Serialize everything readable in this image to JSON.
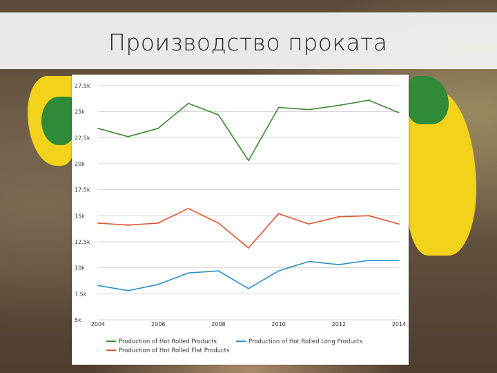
{
  "slide": {
    "title": "Производство проката"
  },
  "chart_data": {
    "type": "line",
    "x": [
      2004,
      2005,
      2006,
      2007,
      2008,
      2009,
      2010,
      2011,
      2012,
      2013,
      2014
    ],
    "x_tick_labels": [
      "2004",
      "2006",
      "2008",
      "2010",
      "2012",
      "2014"
    ],
    "x_tick_values": [
      2004,
      2006,
      2008,
      2010,
      2012,
      2014
    ],
    "y_tick_labels": [
      "5k",
      "7.5k",
      "10k",
      "12.5k",
      "15k",
      "17.5k",
      "20k",
      "22.5k",
      "25k",
      "27.5k"
    ],
    "y_tick_values": [
      5000,
      7500,
      10000,
      12500,
      15000,
      17500,
      20000,
      22500,
      25000,
      27500
    ],
    "ylim": [
      5000,
      27500
    ],
    "grid": true,
    "legend_position": "bottom",
    "series": [
      {
        "name": "Production of Hot Rolled Products",
        "color": "#3a8a2e",
        "values": [
          23400,
          22600,
          23400,
          25800,
          24700,
          20300,
          25400,
          25200,
          25600,
          26100,
          24900
        ]
      },
      {
        "name": "Production of Hot Rolled Long Products",
        "color": "#2a90c8",
        "values": [
          8300,
          7800,
          8400,
          9500,
          9700,
          8000,
          9700,
          10600,
          10300,
          10700,
          10700
        ]
      },
      {
        "name": "Production of Hot Rolled Flat Products",
        "color": "#e0552a",
        "values": [
          14300,
          14100,
          14300,
          15700,
          14300,
          11900,
          15200,
          14200,
          14900,
          15000,
          14200
        ]
      }
    ]
  }
}
